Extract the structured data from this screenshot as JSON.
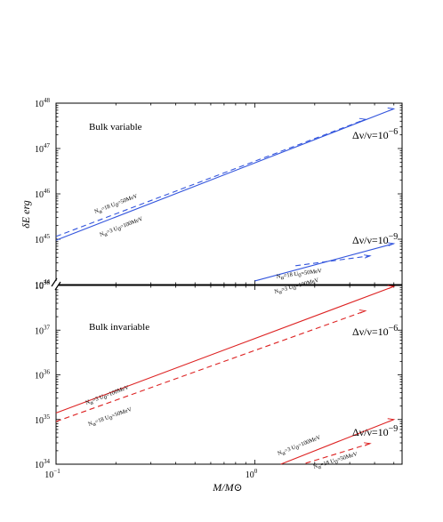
{
  "chart_data": [
    {
      "type": "line",
      "panel": "top",
      "title": "Bulk variable",
      "ylabel": "δE erg",
      "xlabel": "M/M⊙",
      "xscale": "log",
      "yscale": "log",
      "xlim": [
        0.1,
        5.5
      ],
      "ylim": [
        1e+44,
        1e+48
      ],
      "y_ticks": [
        {
          "base": "10",
          "exp": "44"
        },
        {
          "base": "10",
          "exp": "45"
        },
        {
          "base": "10",
          "exp": "46"
        },
        {
          "base": "10",
          "exp": "47"
        },
        {
          "base": "10",
          "exp": "48"
        }
      ],
      "color": "#3355dd",
      "groups": [
        {
          "label": "Δν/ν=10",
          "label_exp": "−6",
          "series": [
            {
              "style": "solid",
              "label_a": "N",
              "label_a_sub": "α",
              "label_a_val": "=3",
              "label_b": "U",
              "label_b_sub": "0",
              "label_b_val": "=100MeV",
              "x": [
                0.1,
                5.0
              ],
              "y": [
                9.5e+44,
                7.5e+47
              ]
            },
            {
              "style": "dashed",
              "label_a": "N",
              "label_a_sub": "α",
              "label_a_val": "=18",
              "label_b": "U",
              "label_b_sub": "0",
              "label_b_val": "=50MeV",
              "x": [
                0.1,
                3.6
              ],
              "y": [
                1.15e+45,
                4.4e+47
              ]
            }
          ]
        },
        {
          "label": "Δν/ν=10",
          "label_exp": "−9",
          "series": [
            {
              "style": "solid",
              "label_a": "N",
              "label_a_sub": "α",
              "label_a_val": "=3",
              "label_b": "U",
              "label_b_sub": "0",
              "label_b_val": "=100MeV",
              "x": [
                1.0,
                5.0
              ],
              "y": [
                1.2e+44,
                8e+44
              ]
            },
            {
              "style": "dashed",
              "label_a": "N",
              "label_a_sub": "α",
              "label_a_val": "=18",
              "label_b": "U",
              "label_b_sub": "0",
              "label_b_val": "=50MeV",
              "x": [
                1.6,
                3.8
              ],
              "y": [
                2.6e+44,
                4.3e+44
              ]
            }
          ]
        }
      ]
    },
    {
      "type": "line",
      "panel": "bottom",
      "title": "Bulk invariable",
      "xlabel": "M/M⊙",
      "xscale": "log",
      "yscale": "log",
      "xlim": [
        0.1,
        5.5
      ],
      "ylim": [
        1e+34,
        1e+38
      ],
      "y_ticks": [
        {
          "base": "10",
          "exp": "34"
        },
        {
          "base": "10",
          "exp": "35"
        },
        {
          "base": "10",
          "exp": "36"
        },
        {
          "base": "10",
          "exp": "37"
        },
        {
          "base": "10",
          "exp": "38"
        }
      ],
      "x_ticks": [
        {
          "base": "10",
          "exp": "−1",
          "value": 0.1
        },
        {
          "base": "10",
          "exp": "0",
          "value": 1.0
        }
      ],
      "color": "#dd2222",
      "groups": [
        {
          "label": "Δν/ν=10",
          "label_exp": "−6",
          "series": [
            {
              "style": "solid",
              "label_a": "N",
              "label_a_sub": "α",
              "label_a_val": "=3",
              "label_b": "U",
              "label_b_sub": "0",
              "label_b_val": "=100MeV",
              "x": [
                0.1,
                5.0
              ],
              "y": [
                1.4e+35,
                9.5e+37
              ]
            },
            {
              "style": "dashed",
              "label_a": "N",
              "label_a_sub": "α",
              "label_a_val": "=18",
              "label_b": "U",
              "label_b_sub": "0",
              "label_b_val": "=50MeV",
              "x": [
                0.1,
                3.6
              ],
              "y": [
                9e+34,
                2.7e+37
              ]
            }
          ]
        },
        {
          "label": "Δν/ν=10",
          "label_exp": "−9",
          "series": [
            {
              "style": "solid",
              "label_a": "N",
              "label_a_sub": "α",
              "label_a_val": "=3",
              "label_b": "U",
              "label_b_sub": "0",
              "label_b_val": "=100MeV",
              "x": [
                1.35,
                5.0
              ],
              "y": [
                1e+34,
                1e+35
              ]
            },
            {
              "style": "dashed",
              "label_a": "N",
              "label_a_sub": "α",
              "label_a_val": "=18",
              "label_b": "U",
              "label_b_sub": "0",
              "label_b_val": "=50MeV",
              "x": [
                1.8,
                3.8
              ],
              "y": [
                1.05e+34,
                2.9e+34
              ]
            }
          ]
        }
      ]
    }
  ]
}
